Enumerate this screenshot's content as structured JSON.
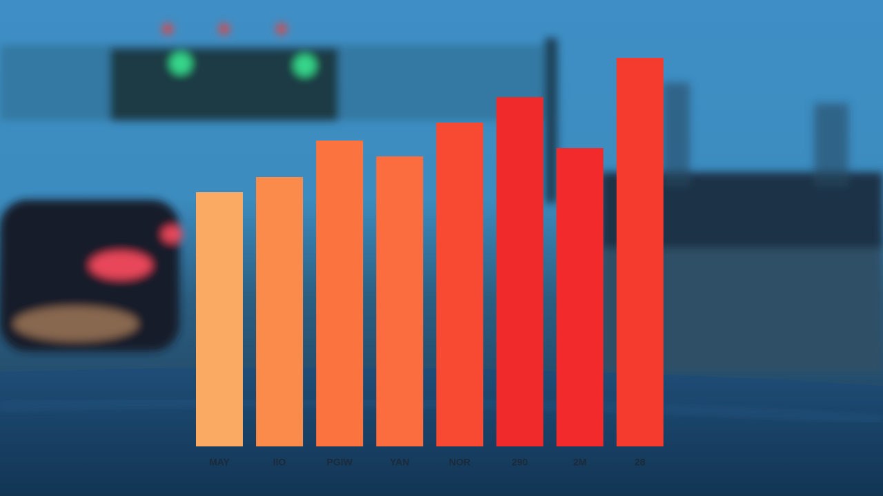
{
  "chart_data": {
    "type": "bar",
    "categories": [
      "MAY",
      "IIO",
      "PGIW",
      "YAN",
      "NOR",
      "290",
      "2M",
      "28"
    ],
    "values": [
      369,
      391,
      444,
      421,
      470,
      507,
      433,
      564
    ],
    "colors": [
      "#fbaa63",
      "#fb8b4b",
      "#fb7440",
      "#fb6c3e",
      "#f84a32",
      "#f02a2a",
      "#f22a2c",
      "#f53a2e"
    ]
  }
}
